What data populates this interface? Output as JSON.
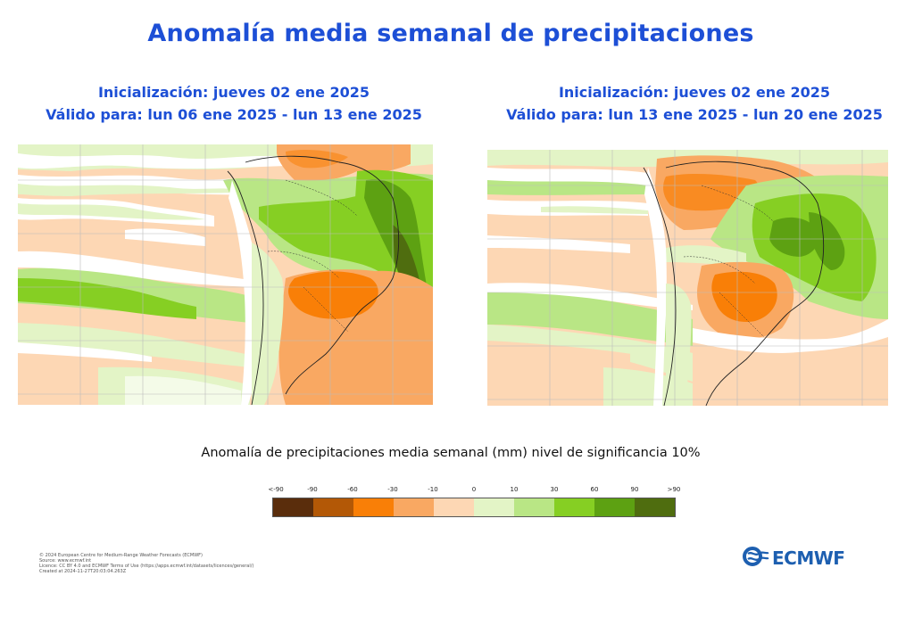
{
  "title": "Anomalía  media semanal de precipitaciones",
  "panels": [
    {
      "init": "Inicialización: jueves 02 ene 2025",
      "valid": "Válido para: lun 06 ene 2025 - lun 13 ene 2025"
    },
    {
      "init": "Inicialización: jueves 02 ene 2025",
      "valid": "Válido para: lun 13 ene 2025 - lun 20 ene 2025"
    }
  ],
  "legend": {
    "title": "Anomalía de precipitaciones media semanal (mm) nivel de significancia 10%",
    "labels": [
      "<-90",
      "-90",
      "-60",
      "-30",
      "-10",
      "0",
      "10",
      "30",
      "60",
      "90",
      ">90"
    ],
    "colors": [
      "#5a2d0c",
      "#b35806",
      "#f97f07",
      "#f9a862",
      "#fdd7b4",
      "#e3f4c6",
      "#b9e685",
      "#86cf23",
      "#5da112",
      "#4f6d0f"
    ]
  },
  "footer": [
    "© 2024 European Centre for Medium-Range Weather Forecasts (ECMWF)",
    "Source: www.ecmwf.int",
    "Licence: CC BY 4.0 and ECMWF Terms of Use (https://apps.ecmwf.int/datasets/licences/general/)",
    "Created at 2024-11-27T20:03:04.263Z"
  ],
  "logo": {
    "text": "ECMWF",
    "icon": "ecmwf-logo-icon",
    "color": "#1d5fb0"
  }
}
